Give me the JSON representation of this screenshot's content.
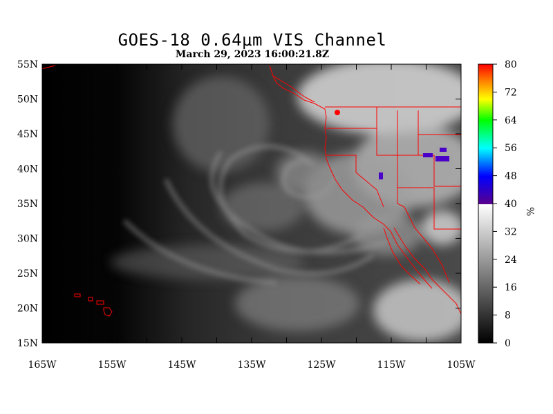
{
  "header": {
    "title": "GOES-18  0.64μm VIS Channel",
    "timestamp": "March 29,  2023 16:00:21.8Z"
  },
  "map": {
    "lat_ticks": [
      "15N",
      "20N",
      "25N",
      "30N",
      "35N",
      "40N",
      "45N",
      "50N",
      "55N"
    ],
    "lon_ticks": [
      "165W",
      "155W",
      "145W",
      "135W",
      "125W",
      "115W",
      "105W"
    ],
    "border_color": "#ff0000"
  },
  "colorbar": {
    "labels": [
      "0",
      "8",
      "16",
      "24",
      "32",
      "40",
      "48",
      "56",
      "64",
      "72",
      "80"
    ],
    "unit": "%",
    "colors": [
      "#000000",
      "#ffffff",
      "#5a008c",
      "#0000ff",
      "#00ffff",
      "#00ff00",
      "#ffff00",
      "#ff8000",
      "#ff0000"
    ]
  }
}
